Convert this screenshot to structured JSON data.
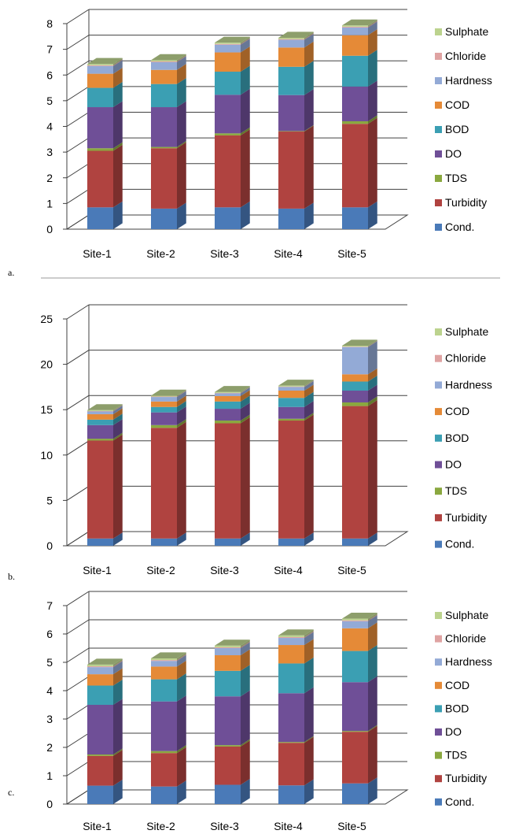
{
  "panels": [
    {
      "label": "a."
    },
    {
      "label": "b."
    },
    {
      "label": "c."
    }
  ],
  "series_colors": {
    "Cond.": "#4a7ab8",
    "Turbidity": "#b04340",
    "TDS": "#8aa83f",
    "DO": "#6f4f97",
    "BOD": "#3b9fb3",
    "COD": "#e58a37",
    "Hardness": "#93aad6",
    "Chloride": "#dfa3a2",
    "Sulphate": "#bcd38e"
  },
  "chart_data": [
    {
      "type": "bar",
      "stacked": true,
      "style": "3d-column",
      "categories": [
        "Site-1",
        "Site-2",
        "Site-3",
        "Site-4",
        "Site-5"
      ],
      "ylim": [
        0,
        8
      ],
      "yticks": [
        "0",
        "1",
        "2",
        "3",
        "4",
        "5",
        "6",
        "7",
        "8"
      ],
      "grid": true,
      "legend": "right",
      "legend_order": [
        "Sulphate",
        "Chloride",
        "Hardness",
        "COD",
        "BOD",
        "DO",
        "TDS",
        "Turbidity",
        "Cond."
      ],
      "series": [
        {
          "name": "Cond.",
          "values": [
            0.85,
            0.8,
            0.85,
            0.8,
            0.85
          ]
        },
        {
          "name": "Turbidity",
          "values": [
            2.2,
            2.35,
            2.8,
            3.0,
            3.25
          ]
        },
        {
          "name": "TDS",
          "values": [
            0.1,
            0.05,
            0.08,
            0.02,
            0.1
          ]
        },
        {
          "name": "DO",
          "values": [
            1.6,
            1.55,
            1.5,
            1.4,
            1.35
          ]
        },
        {
          "name": "BOD",
          "values": [
            0.75,
            0.9,
            0.9,
            1.1,
            1.2
          ]
        },
        {
          "name": "COD",
          "values": [
            0.55,
            0.55,
            0.75,
            0.75,
            0.8
          ]
        },
        {
          "name": "Hardness",
          "values": [
            0.3,
            0.3,
            0.3,
            0.3,
            0.3
          ]
        },
        {
          "name": "Chloride",
          "values": [
            0.03,
            0.03,
            0.03,
            0.03,
            0.03
          ]
        },
        {
          "name": "Sulphate",
          "values": [
            0.05,
            0.05,
            0.05,
            0.05,
            0.05
          ]
        }
      ]
    },
    {
      "type": "bar",
      "stacked": true,
      "style": "3d-column",
      "categories": [
        "Site-1",
        "Site-2",
        "Site-3",
        "Site-4",
        "Site-5"
      ],
      "ylim": [
        0,
        25
      ],
      "yticks": [
        "0",
        "5",
        "10",
        "15",
        "20",
        "25"
      ],
      "grid": true,
      "legend": "right",
      "legend_order": [
        "Sulphate",
        "Chloride",
        "Hardness",
        "COD",
        "BOD",
        "DO",
        "TDS",
        "Turbidity",
        "Cond."
      ],
      "series": [
        {
          "name": "Cond.",
          "values": [
            0.8,
            0.8,
            0.8,
            0.8,
            0.8
          ]
        },
        {
          "name": "Turbidity",
          "values": [
            10.8,
            12.2,
            12.7,
            13.0,
            14.6
          ]
        },
        {
          "name": "TDS",
          "values": [
            0.2,
            0.3,
            0.3,
            0.2,
            0.4
          ]
        },
        {
          "name": "DO",
          "values": [
            1.5,
            1.4,
            1.3,
            1.3,
            1.3
          ]
        },
        {
          "name": "BOD",
          "values": [
            0.6,
            0.6,
            0.8,
            1.0,
            1.0
          ]
        },
        {
          "name": "COD",
          "values": [
            0.6,
            0.6,
            0.6,
            0.8,
            0.8
          ]
        },
        {
          "name": "Hardness",
          "values": [
            0.3,
            0.5,
            0.3,
            0.4,
            3.0
          ]
        },
        {
          "name": "Chloride",
          "values": [
            0.05,
            0.05,
            0.05,
            0.05,
            0.05
          ]
        },
        {
          "name": "Sulphate",
          "values": [
            0.1,
            0.1,
            0.1,
            0.1,
            0.1
          ]
        }
      ]
    },
    {
      "type": "bar",
      "stacked": true,
      "style": "3d-column",
      "categories": [
        "Site-1",
        "Site-2",
        "Site-3",
        "Site-4",
        "Site-5"
      ],
      "ylim": [
        0,
        7
      ],
      "yticks": [
        "0",
        "1",
        "2",
        "3",
        "4",
        "5",
        "6",
        "7"
      ],
      "grid": true,
      "legend": "right",
      "legend_order": [
        "Sulphate",
        "Chloride",
        "Hardness",
        "COD",
        "BOD",
        "DO",
        "TDS",
        "Turbidity",
        "Cond."
      ],
      "series": [
        {
          "name": "Cond.",
          "values": [
            0.65,
            0.62,
            0.68,
            0.66,
            0.73
          ]
        },
        {
          "name": "Turbidity",
          "values": [
            1.05,
            1.18,
            1.35,
            1.5,
            1.82
          ]
        },
        {
          "name": "TDS",
          "values": [
            0.05,
            0.07,
            0.05,
            0.03,
            0.03
          ]
        },
        {
          "name": "DO",
          "values": [
            1.75,
            1.75,
            1.72,
            1.72,
            1.72
          ]
        },
        {
          "name": "BOD",
          "values": [
            0.68,
            0.78,
            0.9,
            1.05,
            1.1
          ]
        },
        {
          "name": "COD",
          "values": [
            0.4,
            0.45,
            0.55,
            0.65,
            0.8
          ]
        },
        {
          "name": "Hardness",
          "values": [
            0.25,
            0.2,
            0.25,
            0.25,
            0.25
          ]
        },
        {
          "name": "Chloride",
          "values": [
            0.03,
            0.03,
            0.03,
            0.03,
            0.03
          ]
        },
        {
          "name": "Sulphate",
          "values": [
            0.06,
            0.06,
            0.06,
            0.06,
            0.06
          ]
        }
      ]
    }
  ]
}
